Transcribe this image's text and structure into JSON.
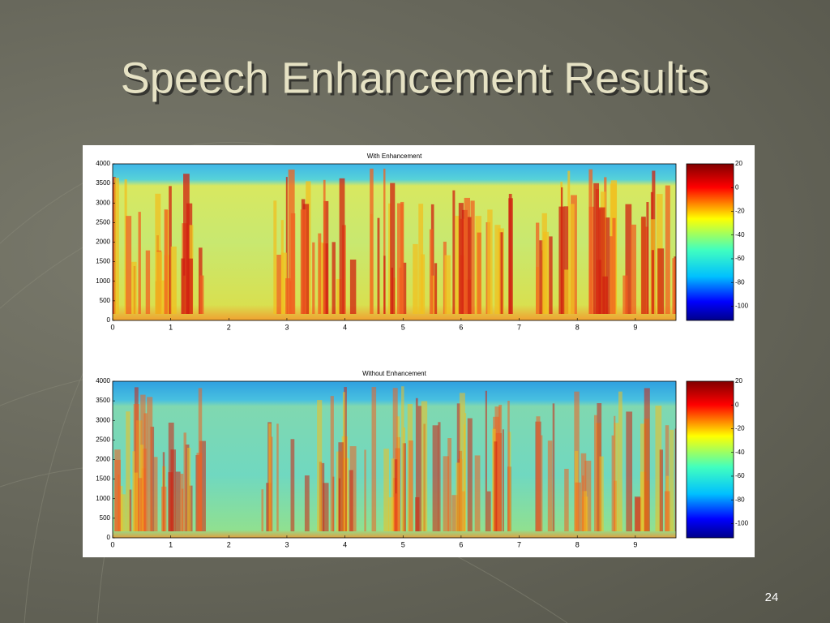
{
  "slide": {
    "title": "Speech Enhancement Results",
    "page_number": "24"
  },
  "figures": [
    {
      "title": "With Enhancement",
      "xlim": [
        0,
        9.7
      ],
      "xticks": [
        0,
        1,
        2,
        3,
        4,
        5,
        6,
        7,
        8,
        9
      ],
      "ylim": [
        0,
        4000
      ],
      "yticks": [
        0,
        500,
        1000,
        1500,
        2000,
        2500,
        3000,
        3500,
        4000
      ],
      "colorbar": {
        "lim": [
          -112,
          20
        ],
        "ticks": [
          20,
          0,
          -20,
          -40,
          -60,
          -80,
          -100
        ]
      }
    },
    {
      "title": "Without Enhancement",
      "xlim": [
        0,
        9.7
      ],
      "xticks": [
        0,
        1,
        2,
        3,
        4,
        5,
        6,
        7,
        8,
        9
      ],
      "ylim": [
        0,
        4000
      ],
      "yticks": [
        0,
        500,
        1000,
        1500,
        2000,
        2500,
        3000,
        3500,
        4000
      ],
      "colorbar": {
        "lim": [
          -112,
          20
        ],
        "ticks": [
          20,
          0,
          -20,
          -40,
          -60,
          -80,
          -100
        ]
      }
    }
  ]
}
